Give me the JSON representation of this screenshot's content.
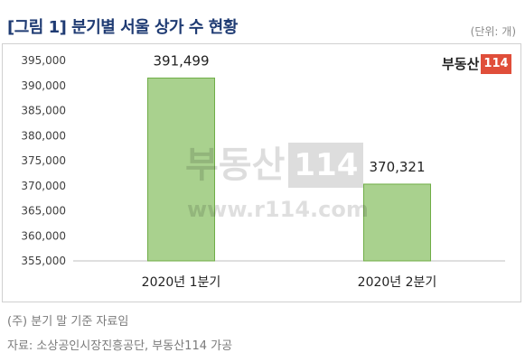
{
  "header": {
    "title": "[그림 1] 분기별 서울 상가 수 현황",
    "unit": "(단위: 개)"
  },
  "logo": {
    "text": "부동산",
    "number": "114",
    "accent_color": "#e04e3a"
  },
  "watermark": {
    "text": "부동산",
    "number": "114",
    "url": "www.r114.com"
  },
  "footer": {
    "note": "(주) 분기 말 기준 자료임",
    "source": "자료: 소상공인시장진흥공단, 부동산114 가공"
  },
  "chart_data": {
    "type": "bar",
    "categories": [
      "2020년 1분기",
      "2020년 2분기"
    ],
    "values": [
      391499,
      370321
    ],
    "value_labels": [
      "391,499",
      "370,321"
    ],
    "ylim": [
      355000,
      395000
    ],
    "yticks": [
      355000,
      360000,
      365000,
      370000,
      375000,
      380000,
      385000,
      390000,
      395000
    ],
    "ytick_labels": [
      "355,000",
      "360,000",
      "365,000",
      "370,000",
      "375,000",
      "380,000",
      "385,000",
      "390,000",
      "395,000"
    ],
    "bar_color": "#a9d18e",
    "bar_edge_color": "#70ad47",
    "grid": false
  }
}
